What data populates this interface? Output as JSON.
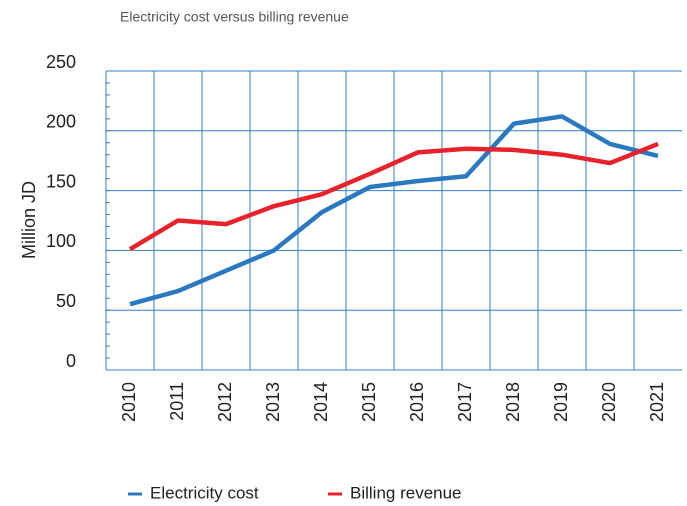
{
  "chart_data": {
    "type": "line",
    "title": "Electricity cost versus billing revenue",
    "y_label": "Million JD",
    "categories": [
      "2010",
      "2011",
      "2012",
      "2013",
      "2014",
      "2015",
      "2016",
      "2017",
      "2018",
      "2019",
      "2020",
      "2021"
    ],
    "series": [
      {
        "name": "Electricity cost",
        "color": "#2a78c0",
        "values": [
          55,
          66,
          83,
          100,
          132,
          153,
          158,
          162,
          206,
          212,
          189,
          179
        ]
      },
      {
        "name": "Billing revenue",
        "color": "#e8222b",
        "values": [
          101,
          125,
          122,
          137,
          147,
          164,
          182,
          185,
          184,
          180,
          173,
          189
        ]
      }
    ],
    "ylim": [
      0,
      250
    ],
    "yticks": [
      0,
      50,
      100,
      150,
      200,
      250
    ],
    "grid": true
  }
}
